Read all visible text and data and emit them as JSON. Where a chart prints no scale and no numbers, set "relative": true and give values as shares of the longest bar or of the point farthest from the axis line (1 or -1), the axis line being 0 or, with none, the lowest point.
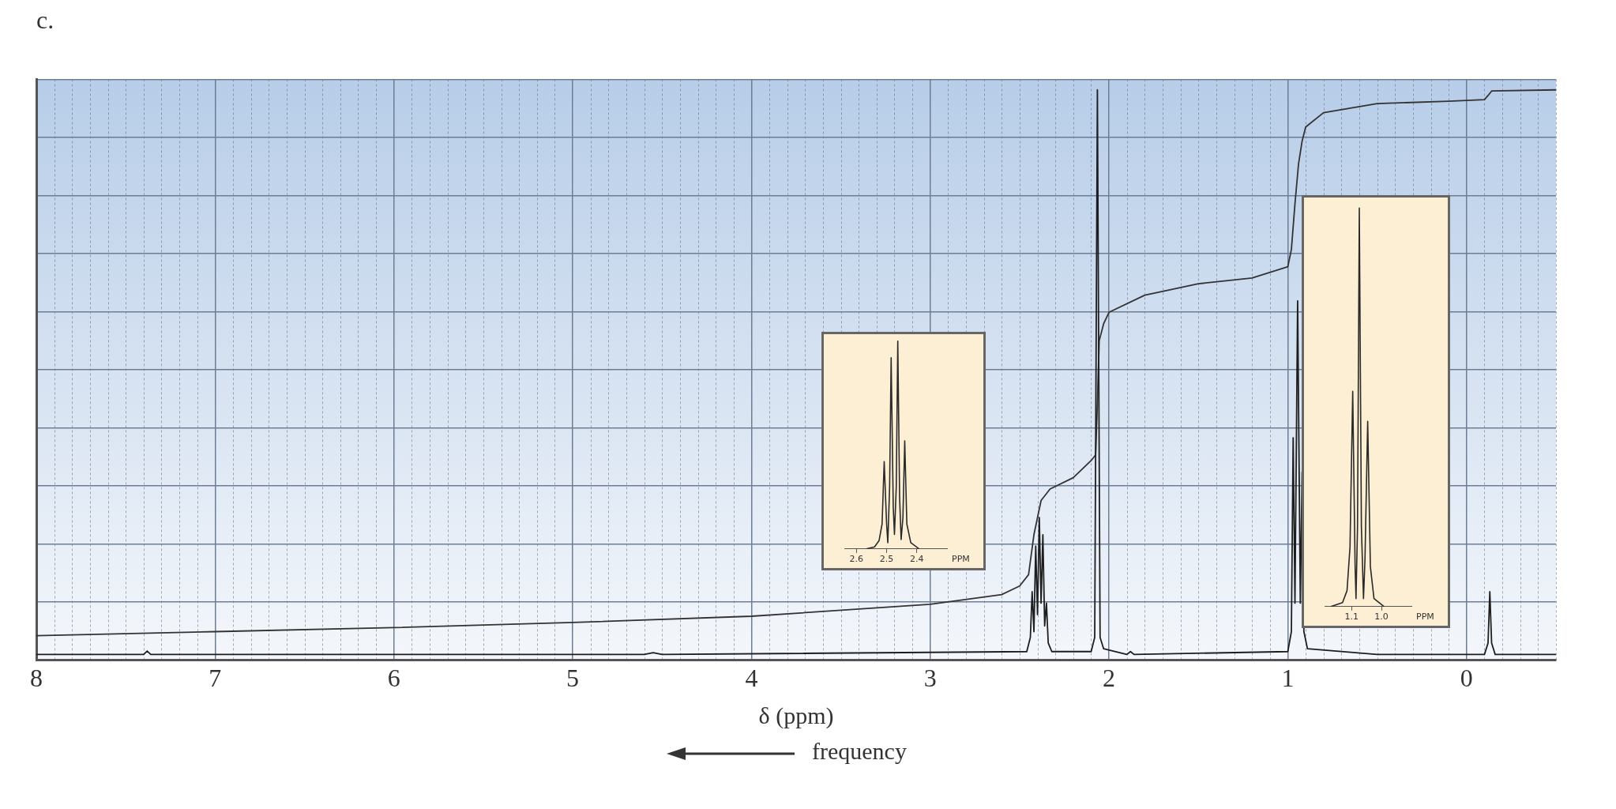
{
  "chart_data": [
    {
      "type": "line",
      "title": "c.",
      "xlabel": "δ (ppm)",
      "relative": true,
      "xlim": [
        8,
        -0.5
      ],
      "xticks": [
        8,
        7,
        6,
        5,
        4,
        3,
        2,
        1,
        0
      ],
      "grid": true,
      "annotations": [
        "frequency"
      ],
      "series": [
        {
          "color": "#1e1e1e",
          "x": [
            8,
            7.4,
            7.38,
            7.36,
            4.6,
            4.55,
            4.5,
            2.46,
            2.44,
            2.43,
            2.42,
            2.41,
            2.4,
            2.39,
            2.38,
            2.37,
            2.36,
            2.35,
            2.34,
            2.32,
            2.1,
            2.08,
            2.065,
            2.05,
            2.03,
            1.9,
            1.88,
            1.86,
            1.0,
            0.98,
            0.97,
            0.96,
            0.945,
            0.93,
            0.92,
            0.91,
            0.89,
            0.5,
            -0.1,
            -0.12,
            -0.13,
            -0.14,
            -0.16,
            -0.5
          ],
          "values": [
            0.01,
            0.01,
            0.016,
            0.01,
            0.01,
            0.013,
            0.01,
            0.015,
            0.04,
            0.12,
            0.05,
            0.2,
            0.08,
            0.25,
            0.1,
            0.22,
            0.06,
            0.1,
            0.03,
            0.015,
            0.015,
            0.04,
            1,
            0.04,
            0.02,
            0.01,
            0.015,
            0.01,
            0.015,
            0.05,
            0.39,
            0.1,
            0.63,
            0.1,
            0.33,
            0.05,
            0.02,
            0.01,
            0.01,
            0.03,
            0.12,
            0.03,
            0.01,
            0.01
          ]
        },
        {
          "color": "#333333",
          "x": [
            8,
            7,
            6,
            5,
            4,
            3,
            2.6,
            2.5,
            2.45,
            2.42,
            2.38,
            2.33,
            2.2,
            2.1,
            2.075,
            2.065,
            2.055,
            2.03,
            2.0,
            1.8,
            1.5,
            1.2,
            1.0,
            0.98,
            0.96,
            0.94,
            0.92,
            0.9,
            0.8,
            0.5,
            0.1,
            -0.1,
            -0.12,
            -0.14,
            -0.5
          ],
          "values": [
            0.043,
            0.05,
            0.057,
            0.066,
            0.077,
            0.098,
            0.115,
            0.13,
            0.15,
            0.22,
            0.28,
            0.3,
            0.32,
            0.35,
            0.36,
            0.45,
            0.56,
            0.59,
            0.61,
            0.64,
            0.66,
            0.67,
            0.69,
            0.72,
            0.8,
            0.87,
            0.91,
            0.935,
            0.96,
            0.976,
            0.98,
            0.983,
            0.99,
            0.998,
            1.0
          ]
        }
      ]
    },
    {
      "type": "line",
      "xlabel": "PPM",
      "relative": true,
      "xlim": [
        2.64,
        2.3
      ],
      "xticks": [
        2.6,
        2.5,
        2.4
      ],
      "series": [
        {
          "color": "#2a2a2a",
          "x": [
            2.567,
            2.54,
            2.525,
            2.515,
            2.508,
            2.5,
            2.496,
            2.49,
            2.485,
            2.478,
            2.474,
            2.468,
            2.463,
            2.457,
            2.452,
            2.446,
            2.44,
            2.433,
            2.42,
            2.392
          ],
          "values": [
            0,
            0.01,
            0.04,
            0.12,
            0.42,
            0.12,
            0.03,
            0.3,
            0.92,
            0.2,
            0.07,
            0.3,
            1,
            0.25,
            0.045,
            0.15,
            0.52,
            0.12,
            0.03,
            0
          ]
        }
      ]
    },
    {
      "type": "line",
      "xlabel": "PPM",
      "relative": true,
      "xlim": [
        1.19,
        0.9
      ],
      "xticks": [
        1.1,
        {
          "value": 1,
          "label": "1.0"
        }
      ],
      "series": [
        {
          "color": "#2a2a2a",
          "x": [
            1.169,
            1.13,
            1.115,
            1.105,
            1.096,
            1.088,
            1.085,
            1.08,
            1.074,
            1.067,
            1.06,
            1.055,
            1.046,
            1.037,
            1.025,
            0.991
          ],
          "values": [
            0,
            0.01,
            0.04,
            0.15,
            0.54,
            0.1,
            0.02,
            0.2,
            1,
            0.2,
            0.02,
            0.12,
            0.465,
            0.1,
            0.02,
            0
          ]
        }
      ]
    }
  ]
}
